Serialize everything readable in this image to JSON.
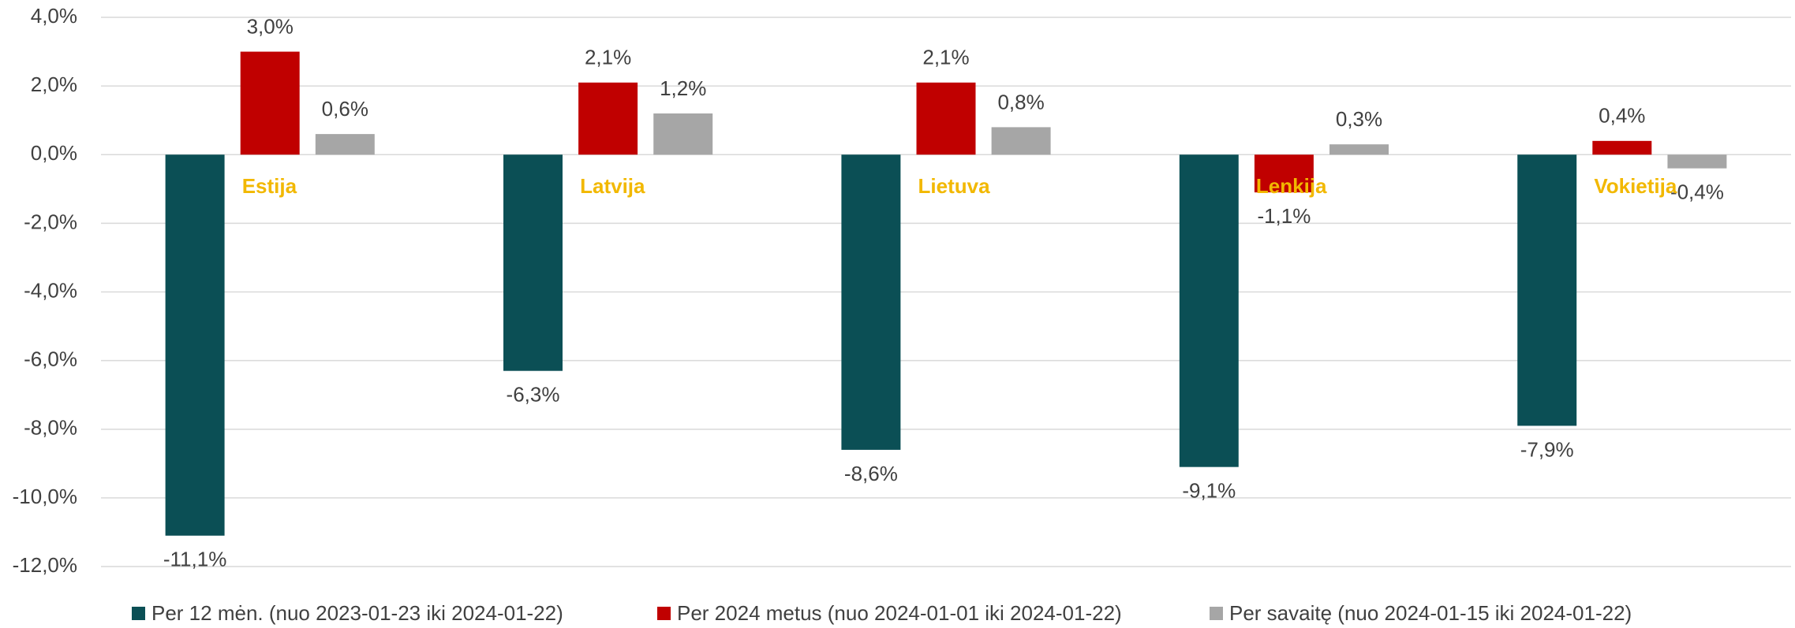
{
  "chart_data": {
    "type": "bar",
    "categories": [
      "Estija",
      "Latvija",
      "Lietuva",
      "Lenkija",
      "Vokietija"
    ],
    "series": [
      {
        "name": "Per 12 mėn. (nuo 2023-01-23 iki 2024-01-22)",
        "color": "#0b4f55",
        "values": [
          -11.1,
          -6.3,
          -8.6,
          -9.1,
          -7.9
        ],
        "value_labels": [
          "-11,1%",
          "-6,3%",
          "-8,6%",
          "-9,1%",
          "-7,9%"
        ]
      },
      {
        "name": "Per 2024 metus (nuo 2024-01-01 iki 2024-01-22)",
        "color": "#c00000",
        "values": [
          3.0,
          2.1,
          2.1,
          -1.1,
          0.4
        ],
        "value_labels": [
          "3,0%",
          "2,1%",
          "2,1%",
          "-1,1%",
          "0,4%"
        ]
      },
      {
        "name": "Per savaitę (nuo 2024-01-15 iki 2024-01-22)",
        "color": "#a6a6a6",
        "values": [
          0.6,
          1.2,
          0.8,
          0.3,
          -0.4
        ],
        "value_labels": [
          "0,6%",
          "1,2%",
          "0,8%",
          "0,3%",
          "-0,4%"
        ]
      }
    ],
    "ylim": [
      -12,
      4
    ],
    "yticks": [
      {
        "value": -12,
        "label": "-12,0%"
      },
      {
        "value": -10,
        "label": "-10,0%"
      },
      {
        "value": -8,
        "label": "-8,0%"
      },
      {
        "value": -6,
        "label": "-6,0%"
      },
      {
        "value": -4,
        "label": "-4,0%"
      },
      {
        "value": -2,
        "label": "-2,0%"
      },
      {
        "value": 0,
        "label": "0,0%"
      },
      {
        "value": 2,
        "label": "2,0%"
      },
      {
        "value": 4,
        "label": "4,0%"
      }
    ],
    "grid": true,
    "legend": "bottom",
    "category_label_color": "#f2b800"
  }
}
